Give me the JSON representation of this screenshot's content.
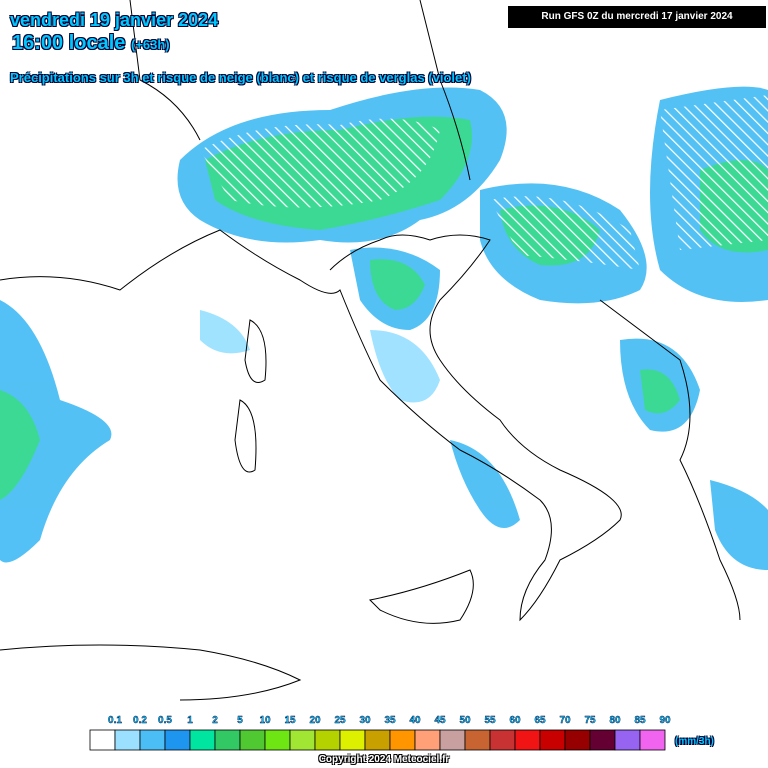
{
  "header": {
    "date": "vendredi 19 janvier 2024",
    "time": "16:00 locale",
    "lead": "(+63h)",
    "subtitle": "Précipitations sur 3h et risque de neige (blanc) et risque de verglas (violet)",
    "run": "Run GFS 0Z du mercredi 17 janvier 2024"
  },
  "legend": {
    "labels": [
      "0.1",
      "0.2",
      "0.5",
      "1",
      "2",
      "5",
      "10",
      "15",
      "20",
      "25",
      "30",
      "35",
      "40",
      "45",
      "50",
      "55",
      "60",
      "65",
      "70",
      "75",
      "80",
      "85",
      "90"
    ],
    "colors": [
      "#ffffff",
      "#9be1ff",
      "#4bbef5",
      "#1e96f0",
      "#00e6a0",
      "#32c864",
      "#50c832",
      "#6ee614",
      "#a0e632",
      "#b4d200",
      "#dcf000",
      "#c8a000",
      "#ff9600",
      "#ffa078",
      "#c8a0a0",
      "#c86432",
      "#c83232",
      "#f01414",
      "#c80000",
      "#960000",
      "#640032",
      "#9664f0",
      "#f064f0"
    ],
    "unit": "(mm/3h)"
  },
  "footer": {
    "copyright": "Copyright 2024 Meteociel.fr"
  }
}
